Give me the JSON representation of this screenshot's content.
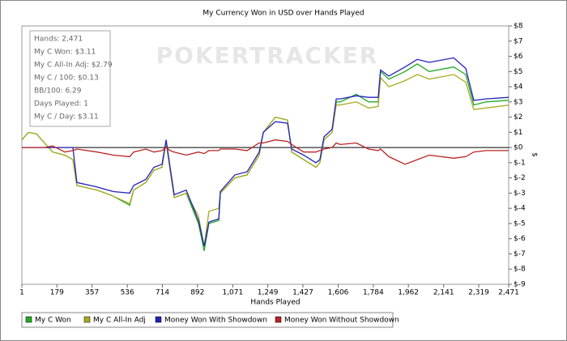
{
  "chart_data": {
    "type": "line",
    "title": "My Currency Won in USD over Hands Played",
    "x_label": "Hands Played",
    "y_label": "$",
    "watermark": "POKERTRACKER",
    "annotations": [
      "Hands: 2,471",
      "My C Won: $3.11",
      "My C All-In Adj: $2.79",
      "My C / 100: $0.13",
      "BB/100: 6.29",
      "Days Played: 1",
      "My C / Day: $3.11"
    ],
    "x": [
      1,
      34,
      75,
      116,
      157,
      219,
      260,
      280,
      383,
      465,
      548,
      568,
      630,
      671,
      712,
      733,
      753,
      774,
      835,
      897,
      926,
      950,
      1000,
      1008,
      1082,
      1144,
      1205,
      1226,
      1287,
      1349,
      1370,
      1431,
      1493,
      1513,
      1534,
      1575,
      1596,
      1616,
      1698,
      1760,
      1809,
      1821,
      1863,
      1945,
      2007,
      2068,
      2192,
      2253,
      2294,
      2356,
      2471
    ],
    "series": [
      {
        "name": "My C Won",
        "color": "#22aa22",
        "values": [
          0.5,
          1.0,
          0.9,
          0.3,
          -0.3,
          -0.5,
          -0.8,
          -2.5,
          -2.8,
          -3.2,
          -3.8,
          -2.8,
          -2.3,
          -1.5,
          -1.3,
          0.5,
          -1.5,
          -3.3,
          -3.0,
          -5.0,
          -6.8,
          -5.0,
          -4.8,
          -3.0,
          -2.0,
          -1.8,
          -0.5,
          1.0,
          2.0,
          1.8,
          -0.3,
          -0.8,
          -1.3,
          -1.0,
          0.5,
          1.0,
          3.0,
          3.0,
          3.5,
          3.0,
          3.0,
          5.0,
          4.5,
          5.0,
          5.5,
          5.0,
          5.3,
          4.8,
          2.8,
          3.0,
          3.11
        ]
      },
      {
        "name": "My C All-In Adj",
        "color": "#aaaa22",
        "values": [
          0.5,
          1.0,
          0.9,
          0.3,
          -0.3,
          -0.5,
          -0.8,
          -2.5,
          -2.8,
          -3.2,
          -3.7,
          -2.8,
          -2.3,
          -1.5,
          -1.3,
          0.3,
          -1.5,
          -3.3,
          -3.0,
          -4.5,
          -6.5,
          -4.2,
          -4.0,
          -3.0,
          -2.0,
          -1.8,
          -0.5,
          1.0,
          2.0,
          1.8,
          -0.3,
          -0.8,
          -1.3,
          -1.0,
          0.5,
          1.0,
          2.8,
          2.8,
          3.0,
          2.6,
          2.7,
          4.6,
          4.0,
          4.4,
          4.8,
          4.5,
          4.8,
          4.3,
          2.5,
          2.6,
          2.79
        ]
      },
      {
        "name": "Money Won With Showdown",
        "color": "#2222bb",
        "values": [
          0,
          0,
          0,
          0,
          0,
          0,
          0,
          -2.3,
          -2.6,
          -2.9,
          -3.0,
          -2.5,
          -2.1,
          -1.3,
          -1.1,
          0.5,
          -1.3,
          -3.1,
          -2.8,
          -4.8,
          -6.5,
          -4.9,
          -4.7,
          -2.9,
          -1.8,
          -1.6,
          -0.3,
          1.0,
          1.7,
          1.6,
          -0.1,
          -0.5,
          -1.0,
          -0.8,
          0.7,
          1.2,
          3.2,
          3.2,
          3.4,
          3.3,
          3.3,
          5.1,
          4.7,
          5.3,
          5.8,
          5.6,
          5.9,
          5.2,
          3.1,
          3.2,
          3.3
        ]
      },
      {
        "name": "Money Won Without Showdown",
        "color": "#bb2222",
        "values": [
          0,
          0,
          0,
          0,
          0.1,
          -0.3,
          -0.2,
          -0.1,
          -0.3,
          -0.5,
          -0.6,
          -0.3,
          -0.1,
          -0.3,
          -0.2,
          0,
          -0.2,
          -0.3,
          -0.5,
          -0.3,
          -0.4,
          -0.2,
          -0.2,
          -0.1,
          -0.1,
          -0.2,
          0.3,
          0.3,
          0.5,
          0.4,
          0.2,
          -0.3,
          -0.3,
          -0.2,
          -0.1,
          0,
          0.3,
          0.2,
          0.3,
          -0.1,
          -0.2,
          -0.1,
          -0.6,
          -1.1,
          -0.8,
          -0.5,
          -0.7,
          -0.6,
          -0.3,
          -0.2,
          -0.2
        ]
      }
    ],
    "xlim": [
      1,
      2471
    ],
    "xticks": [
      1,
      179,
      357,
      536,
      714,
      892,
      {
        "value": 1071,
        "label": "1,071"
      },
      {
        "value": 1249,
        "label": "1,249"
      },
      {
        "value": 1427,
        "label": "1,427"
      },
      {
        "value": 1606,
        "label": "1,606"
      },
      {
        "value": 1784,
        "label": "1,784"
      },
      {
        "value": 1962,
        "label": "1,962"
      },
      {
        "value": 2141,
        "label": "2,141"
      },
      {
        "value": 2319,
        "label": "2,319"
      },
      {
        "value": 2471,
        "label": "2,471"
      }
    ],
    "ylim": [
      -9,
      8
    ],
    "yticks": [
      {
        "value": -9,
        "label": "$-9"
      },
      {
        "value": -8,
        "label": "$-8"
      },
      {
        "value": -7,
        "label": "$-7"
      },
      {
        "value": -6,
        "label": "$-6"
      },
      {
        "value": -5,
        "label": "$-5"
      },
      {
        "value": -4,
        "label": "$-4"
      },
      {
        "value": -3,
        "label": "$-3"
      },
      {
        "value": -2,
        "label": "$-2"
      },
      {
        "value": -1,
        "label": "$-1"
      },
      {
        "value": 0,
        "label": "$0"
      },
      {
        "value": 1,
        "label": "$1"
      },
      {
        "value": 2,
        "label": "$2"
      },
      {
        "value": 3,
        "label": "$3"
      },
      {
        "value": 4,
        "label": "$4"
      },
      {
        "value": 5,
        "label": "$5"
      },
      {
        "value": 6,
        "label": "$6"
      },
      {
        "value": 7,
        "label": "$7"
      },
      {
        "value": 8,
        "label": "$8"
      }
    ],
    "grid": false,
    "legend": "bottom"
  }
}
